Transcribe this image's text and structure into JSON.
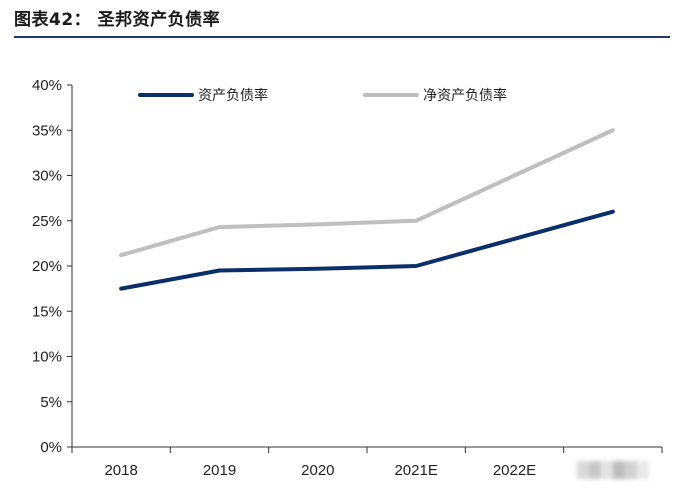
{
  "title": "图表42：   圣邦资产负债率",
  "chart_data": {
    "type": "line",
    "categories": [
      "2018",
      "2019",
      "2020",
      "2021E",
      "2022E",
      "2023E"
    ],
    "series": [
      {
        "name": "资产负债率",
        "values": [
          17.5,
          19.5,
          19.7,
          20.0,
          23.0,
          26.0
        ],
        "color": "#0a2f6b"
      },
      {
        "name": "净资产负债率",
        "values": [
          21.2,
          24.3,
          24.6,
          25.0,
          30.0,
          35.0
        ],
        "color": "#bfbfbf"
      }
    ],
    "ylim": [
      0,
      40
    ],
    "yticks": [
      0,
      5,
      10,
      15,
      20,
      25,
      30,
      35,
      40
    ],
    "ytick_suffix": "%",
    "legend": "top",
    "grid": false,
    "last_category_obscured": true
  }
}
